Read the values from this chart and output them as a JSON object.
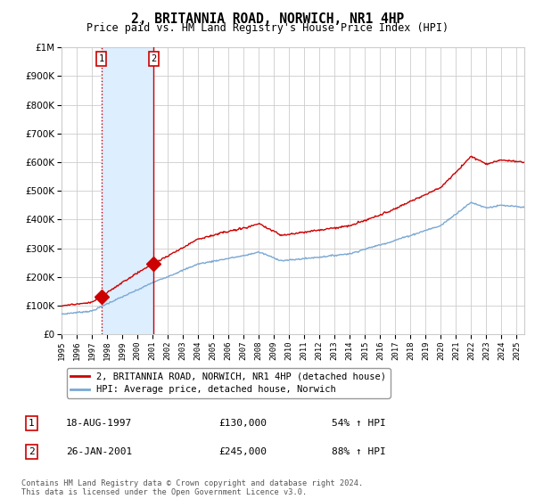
{
  "title": "2, BRITANNIA ROAD, NORWICH, NR1 4HP",
  "subtitle": "Price paid vs. HM Land Registry's House Price Index (HPI)",
  "legend_line1": "2, BRITANNIA ROAD, NORWICH, NR1 4HP (detached house)",
  "legend_line2": "HPI: Average price, detached house, Norwich",
  "transaction1_date": "18-AUG-1997",
  "transaction1_price": "£130,000",
  "transaction1_hpi": "54% ↑ HPI",
  "transaction1_year": 1997.62,
  "transaction1_value": 130000,
  "transaction2_date": "26-JAN-2001",
  "transaction2_price": "£245,000",
  "transaction2_hpi": "88% ↑ HPI",
  "transaction2_year": 2001.07,
  "transaction2_value": 245000,
  "red_line_color": "#cc0000",
  "blue_line_color": "#7aa8d4",
  "shade_color": "#ddeeff",
  "grid_color": "#cccccc",
  "background_color": "#ffffff",
  "ylim": [
    0,
    1000000
  ],
  "xlim_start": 1995,
  "xlim_end": 2025.5,
  "footer": "Contains HM Land Registry data © Crown copyright and database right 2024.\nThis data is licensed under the Open Government Licence v3.0."
}
